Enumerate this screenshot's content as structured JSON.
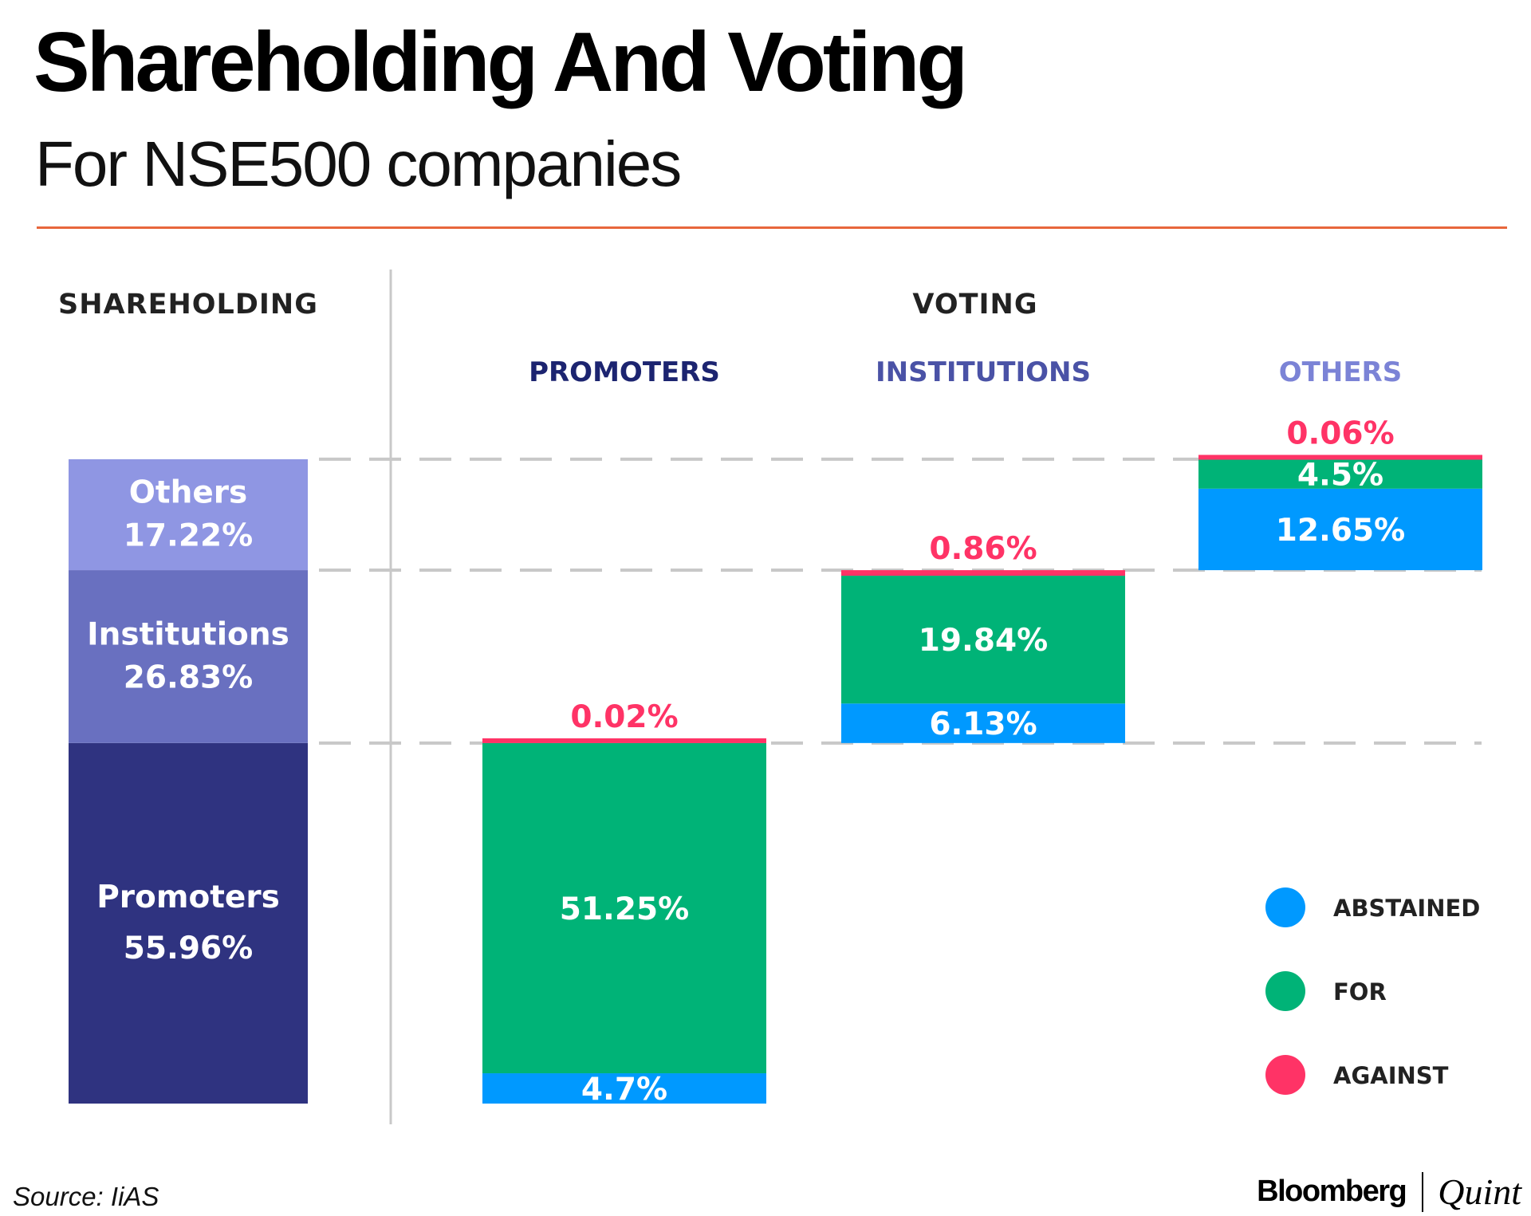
{
  "title": "Shareholding And Voting",
  "subtitle": "For NSE500 companies",
  "source": "Source: IiAS",
  "brand": {
    "left": "Bloomberg",
    "right": "Quint"
  },
  "colors": {
    "accent_rule": "#e8663c",
    "abstained": "#0099ff",
    "for": "#00b377",
    "against": "#ff3366",
    "promoters_share": "#2f3380",
    "institutions_share": "#6970c0",
    "others_share": "#8f96e3",
    "promoters_header": "#1c2470",
    "institutions_header": "#4a52a6",
    "others_header": "#7b83d6",
    "section_header": "#222222",
    "divider": "#c8c8c8"
  },
  "chart_data": {
    "type": "bar",
    "sections": {
      "shareholding": "SHAREHOLDING",
      "voting": "VOTING"
    },
    "shareholding": [
      {
        "key": "promoters",
        "name": "Promoters",
        "value": 55.96,
        "label": "55.96%"
      },
      {
        "key": "institutions",
        "name": "Institutions",
        "value": 26.83,
        "label": "26.83%"
      },
      {
        "key": "others",
        "name": "Others",
        "value": 17.22,
        "label": "17.22%"
      }
    ],
    "voting": [
      {
        "key": "promoters",
        "header": "PROMOTERS",
        "abstained": {
          "value": 4.7,
          "label": "4.7%"
        },
        "for": {
          "value": 51.25,
          "label": "51.25%"
        },
        "against": {
          "value": 0.02,
          "label": "0.02%"
        }
      },
      {
        "key": "institutions",
        "header": "INSTITUTIONS",
        "abstained": {
          "value": 6.13,
          "label": "6.13%"
        },
        "for": {
          "value": 19.84,
          "label": "19.84%"
        },
        "against": {
          "value": 0.86,
          "label": "0.86%"
        }
      },
      {
        "key": "others",
        "header": "OTHERS",
        "abstained": {
          "value": 12.65,
          "label": "12.65%"
        },
        "for": {
          "value": 4.5,
          "label": "4.5%"
        },
        "against": {
          "value": 0.06,
          "label": "0.06%"
        }
      }
    ],
    "legend": [
      {
        "key": "abstained",
        "label": "ABSTAINED"
      },
      {
        "key": "for",
        "label": "FOR"
      },
      {
        "key": "against",
        "label": "AGAINST"
      }
    ],
    "legend_position": "bottom-right",
    "ylim": [
      0,
      100
    ],
    "grid": "dashed lines at shareholding boundaries"
  }
}
